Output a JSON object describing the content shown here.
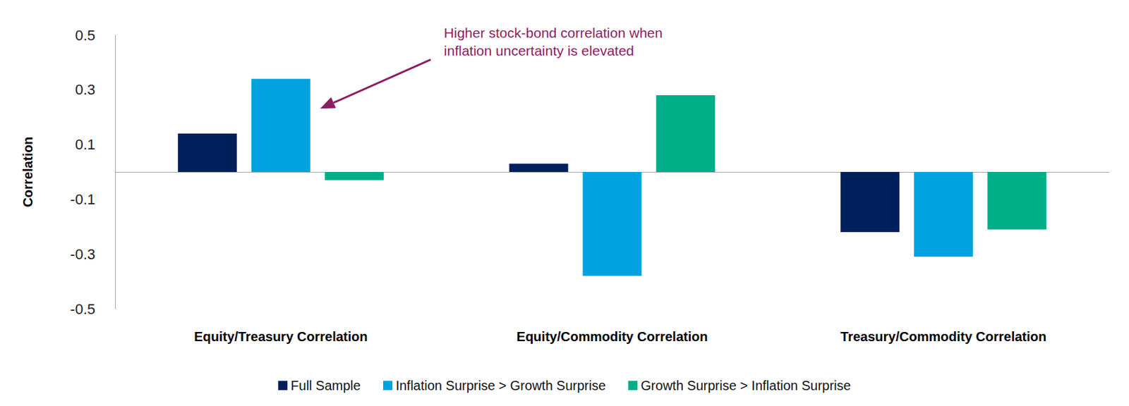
{
  "chart_data": {
    "type": "bar",
    "y_label": "Correlation",
    "categories": [
      "Equity/Treasury Correlation",
      "Equity/Commodity Correlation",
      "Treasury/Commodity Correlation"
    ],
    "series": [
      {
        "name": "Full Sample",
        "color": "#00205B",
        "values": [
          0.14,
          0.03,
          -0.22
        ]
      },
      {
        "name": "Inflation Surprise > Growth Surprise",
        "color": "#00A3E0",
        "values": [
          0.34,
          -0.38,
          -0.31
        ]
      },
      {
        "name": "Growth Surprise > Inflation Surprise",
        "color": "#00AE88",
        "values": [
          -0.03,
          0.28,
          -0.21
        ]
      }
    ],
    "ylim": [
      -0.5,
      0.5
    ],
    "yticks": [
      -0.5,
      -0.3,
      -0.1,
      0.1,
      0.3,
      0.5
    ],
    "grid": false,
    "legend": "bottom",
    "data_labels": false,
    "annotations": [
      {
        "text": "Higher stock-bond correlation when\ninflation uncertainty is elevated",
        "category": "Equity/Treasury Correlation",
        "series": "Inflation Surprise > Growth Surprise",
        "color": "#8C1D5F"
      }
    ]
  }
}
